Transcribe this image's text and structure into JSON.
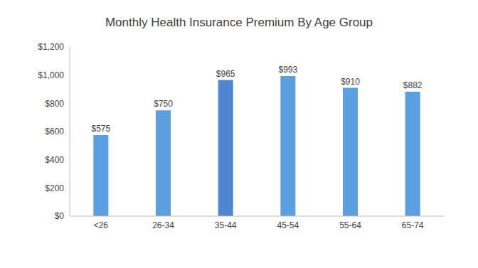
{
  "chart_data": {
    "type": "bar",
    "title": "Monthly Health Insurance Premium By Age Group",
    "categories": [
      "<26",
      "26-34",
      "35-44",
      "45-54",
      "55-64",
      "65-74"
    ],
    "values": [
      575,
      750,
      965,
      993,
      910,
      882
    ],
    "value_labels": [
      "$575",
      "$750",
      "$965",
      "$993",
      "$910",
      "$882"
    ],
    "colors": [
      "#5b9fe0",
      "#5b9fe0",
      "#4f86d0",
      "#5b9fe0",
      "#5b9fe0",
      "#5b9fe0"
    ],
    "ylim": [
      0,
      1200
    ],
    "yticks": [
      {
        "value": 0,
        "label": "$0"
      },
      {
        "value": 200,
        "label": "$200"
      },
      {
        "value": 400,
        "label": "$400"
      },
      {
        "value": 600,
        "label": "$600"
      },
      {
        "value": 800,
        "label": "$800"
      },
      {
        "value": 1000,
        "label": "$1,000"
      },
      {
        "value": 1200,
        "label": "$1,200"
      }
    ],
    "grid": false,
    "data_labels": true
  }
}
